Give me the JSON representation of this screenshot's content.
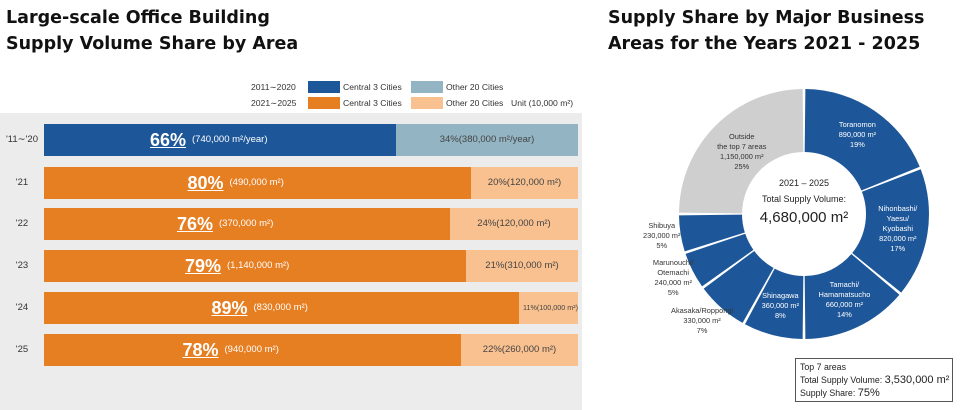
{
  "left_title": "Large-scale Office Building Supply Volume Share by Area",
  "right_title": "Supply Share by Major Business Areas for the Years 2021 - 2025",
  "legend": {
    "row1_period": "2011∼2020",
    "row2_period": "2021∼2025",
    "central_label": "Central 3 Cities",
    "other_label": "Other 20 Cities",
    "unit": "Unit (10,000 m²)"
  },
  "colors": {
    "central_2011": "#1e5799",
    "other_2011": "#93b4c3",
    "central_2021": "#e67e22",
    "other_2021": "#f9c190",
    "donut_blue": "#1e5799",
    "donut_gray": "#cfcfcf"
  },
  "chart_data": [
    {
      "type": "bar",
      "orientation": "horizontal-stacked-percent",
      "categories": [
        "'11∼'20",
        "'21",
        "'22",
        "'23",
        "'24",
        "'25"
      ],
      "series": [
        {
          "name": "Central 3 Cities",
          "values": [
            66,
            80,
            76,
            79,
            89,
            78
          ],
          "pct_labels": [
            "66%",
            "80%",
            "76%",
            "79%",
            "89%",
            "78%"
          ],
          "value_labels": [
            "(740,000 m²/year)",
            "(490,000 m²)",
            "(370,000 m²)",
            "(1,140,000 m²)",
            "(830,000 m²)",
            "(940,000 m²)"
          ]
        },
        {
          "name": "Other 20 Cities",
          "values": [
            34,
            20,
            24,
            21,
            11,
            22
          ],
          "labels": [
            "34%(380,000 m²/year)",
            "20%(120,000 m²)",
            "24%(120,000 m²)",
            "21%(310,000 m²)",
            "11%(100,000 m²)",
            "22%(260,000 m²)"
          ]
        }
      ]
    },
    {
      "type": "pie",
      "style": "donut",
      "slices": [
        {
          "lines": [
            "Toranomon",
            "890,000 m²",
            "19%"
          ],
          "value": 19,
          "color": "blue"
        },
        {
          "lines": [
            "Nihonbashi/",
            "Yaesu/",
            "Kyobashi",
            "820,000 m²",
            "17%"
          ],
          "value": 17,
          "color": "blue"
        },
        {
          "lines": [
            "Tamachi/",
            "Hamamatsucho",
            "660,000 m²",
            "14%"
          ],
          "value": 14,
          "color": "blue"
        },
        {
          "lines": [
            "Shinagawa",
            "360,000 m²",
            "8%"
          ],
          "value": 8,
          "color": "blue"
        },
        {
          "lines": [
            "Akasaka/Roppongi",
            "330,000 m²",
            "7%"
          ],
          "value": 7,
          "color": "blue"
        },
        {
          "lines": [
            "Marunouchi/",
            "Otemachi",
            "240,000 m²",
            "5%"
          ],
          "value": 5,
          "color": "blue"
        },
        {
          "lines": [
            "Shibuya",
            "230,000 m²",
            "5%"
          ],
          "value": 5,
          "color": "blue"
        },
        {
          "lines": [
            "Outside",
            "the top 7 areas",
            "1,150,000 m²",
            "25%"
          ],
          "value": 25,
          "color": "gray"
        }
      ],
      "center": {
        "period": "2021 – 2025",
        "label": "Total Supply Volume:",
        "total": "4,680,000 m²"
      }
    }
  ],
  "top7": {
    "line1": "Top 7 areas",
    "volume_label": "Total Supply Volume:",
    "volume_value": "3,530,000 m²",
    "share_label": "Supply Share:",
    "share_value": "75%"
  }
}
